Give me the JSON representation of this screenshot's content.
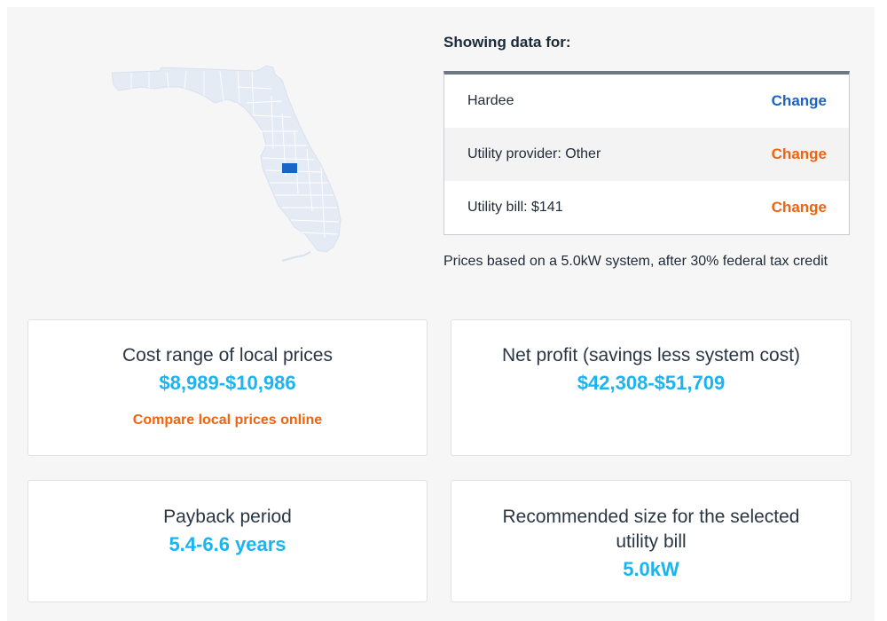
{
  "map": {
    "state": "Florida",
    "highlighted_county": "Hardee",
    "colors": {
      "state_fill": "#e4ebf5",
      "county_lines": "#ffffff",
      "highlight": "#1a64c8"
    }
  },
  "showing": {
    "title": "Showing data for:",
    "rows": [
      {
        "label": "Hardee",
        "action": "Change",
        "action_color": "blue"
      },
      {
        "label": "Utility provider: Other",
        "action": "Change",
        "action_color": "orange"
      },
      {
        "label": "Utility bill: $141",
        "action": "Change",
        "action_color": "orange"
      }
    ],
    "note": "Prices based on a 5.0kW system, after 30% federal tax credit"
  },
  "cards": {
    "cost": {
      "label": "Cost range of local prices",
      "value": "$8,989-$10,986",
      "link": "Compare local prices online"
    },
    "profit": {
      "label": "Net profit (savings less system cost)",
      "value": "$42,308-$51,709"
    },
    "payback": {
      "label": "Payback period",
      "value": "5.4-6.6 years"
    },
    "size": {
      "label": "Recommended size for the selected utility bill",
      "value": "5.0kW"
    }
  },
  "colors": {
    "accent_value": "#1ab5f0",
    "link_orange": "#f2630f",
    "link_blue": "#1a64c8",
    "page_bg": "#f6f6f6"
  }
}
